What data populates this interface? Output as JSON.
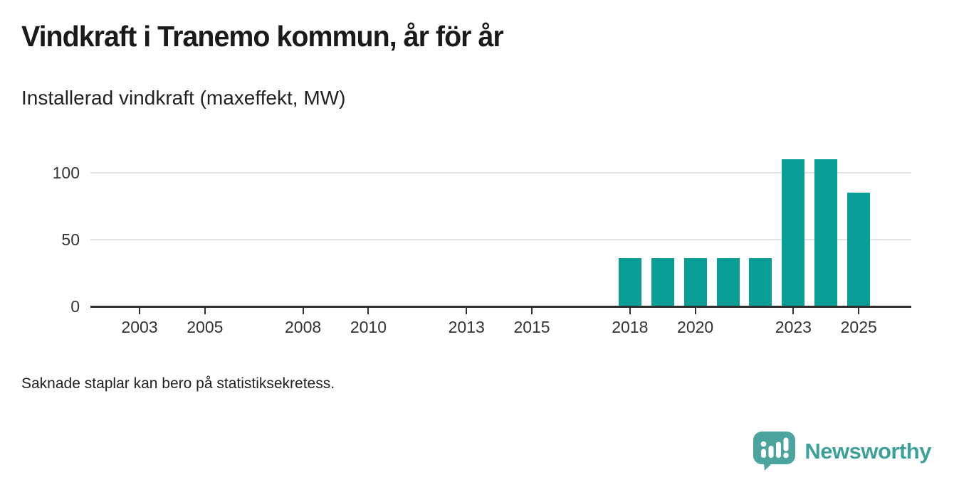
{
  "header": {
    "title": "Vindkraft i Tranemo kommun, år för år",
    "subtitle": "Installerad vindkraft (maxeffekt, MW)"
  },
  "footnote": "Saknade staplar kan bero på statistiksekretess.",
  "branding": {
    "name": "Newsworthy",
    "logo_icon": "speech-bubble-with-bar-chart-and-exclamation"
  },
  "colors": {
    "bar": "#0a9f96",
    "axis": "#2f2f2f",
    "gridline": "#e4e4e4",
    "tick_text": "#333333",
    "title_text": "#1a1a1a",
    "brand_teal": "#4ba49d",
    "brand_text": "#3da19a"
  },
  "chart_data": {
    "type": "bar",
    "title": "Vindkraft i Tranemo kommun, år för år",
    "subtitle": "Installerad vindkraft (maxeffekt, MW)",
    "xlabel": "",
    "ylabel": "Installerad vindkraft (maxeffekt, MW)",
    "unit": "MW",
    "x_domain": [
      2002,
      2026
    ],
    "x_ticks": [
      2003,
      2005,
      2008,
      2010,
      2013,
      2015,
      2018,
      2020,
      2023,
      2025
    ],
    "y_ticks": [
      0,
      50,
      100
    ],
    "ylim": [
      0,
      115
    ],
    "grid": "horizontal",
    "legend": "none",
    "points": [
      {
        "year": 2018,
        "value": 36
      },
      {
        "year": 2019,
        "value": 36
      },
      {
        "year": 2020,
        "value": 36
      },
      {
        "year": 2021,
        "value": 36
      },
      {
        "year": 2022,
        "value": 36
      },
      {
        "year": 2023,
        "value": 110
      },
      {
        "year": 2024,
        "value": 110
      },
      {
        "year": 2025,
        "value": 85
      }
    ],
    "missing_years_note": "Saknade staplar kan bero på statistiksekretess."
  }
}
